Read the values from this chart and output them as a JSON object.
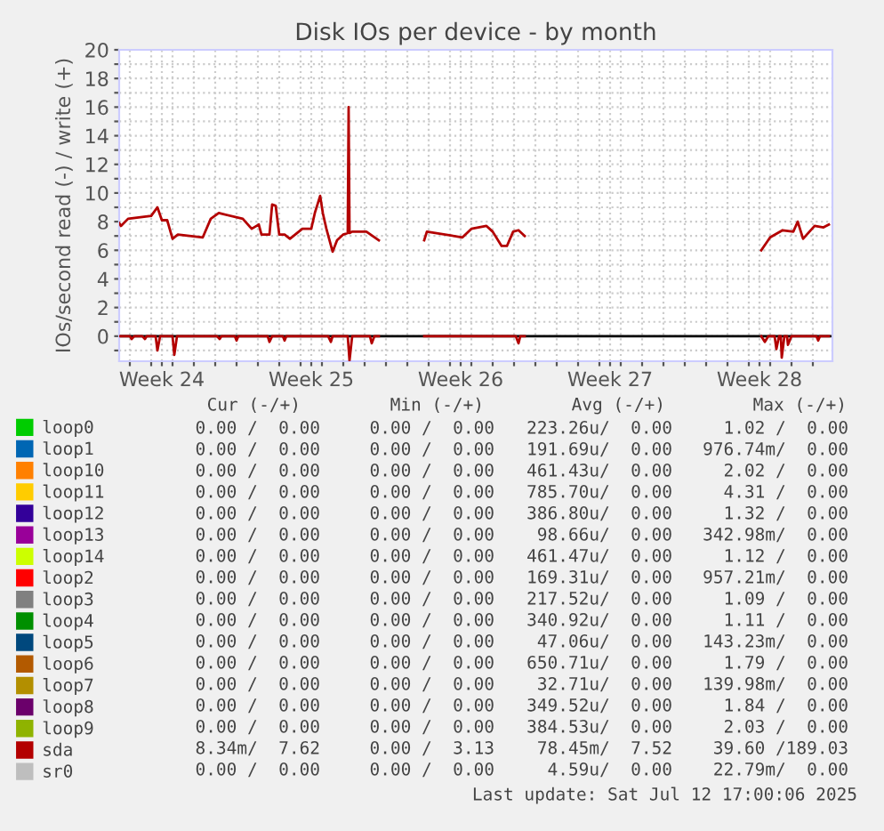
{
  "chart_data": {
    "type": "line",
    "title": "Disk IOs per device - by month",
    "ylabel": "IOs/second read (-) / write (+)",
    "xlim": [
      "2025-06-10T12:00",
      "2025-07-13T22:00"
    ],
    "ylim": [
      -1.75,
      20
    ],
    "xticks": [
      {
        "value": "2025-06-12T12:00",
        "label": "Week 24"
      },
      {
        "value": "2025-06-19T12:00",
        "label": "Week 25"
      },
      {
        "value": "2025-06-26T12:00",
        "label": "Week 26"
      },
      {
        "value": "2025-07-03T12:00",
        "label": "Week 27"
      },
      {
        "value": "2025-07-10T12:00",
        "label": "Week 28"
      },
      {
        "value": "2025-06-11",
        "label": null
      },
      {
        "value": "2025-06-12",
        "label": null
      },
      {
        "value": "2025-06-13",
        "label": null
      },
      {
        "value": "2025-06-14",
        "label": null
      },
      {
        "value": "2025-06-15",
        "label": null
      },
      {
        "value": "2025-06-16",
        "label": null
      },
      {
        "value": "2025-06-17",
        "label": null
      },
      {
        "value": "2025-06-18",
        "label": null
      },
      {
        "value": "2025-06-19",
        "label": null
      },
      {
        "value": "2025-06-20",
        "label": null
      },
      {
        "value": "2025-06-21",
        "label": null
      },
      {
        "value": "2025-06-22",
        "label": null
      },
      {
        "value": "2025-06-23",
        "label": null
      },
      {
        "value": "2025-06-24",
        "label": null
      },
      {
        "value": "2025-06-25",
        "label": null
      },
      {
        "value": "2025-06-26",
        "label": null
      },
      {
        "value": "2025-06-27",
        "label": null
      },
      {
        "value": "2025-06-28",
        "label": null
      },
      {
        "value": "2025-06-29",
        "label": null
      },
      {
        "value": "2025-06-30",
        "label": null
      },
      {
        "value": "2025-07-01",
        "label": null
      },
      {
        "value": "2025-07-02",
        "label": null
      },
      {
        "value": "2025-07-03",
        "label": null
      },
      {
        "value": "2025-07-04",
        "label": null
      },
      {
        "value": "2025-07-05",
        "label": null
      },
      {
        "value": "2025-07-06",
        "label": null
      },
      {
        "value": "2025-07-07",
        "label": null
      },
      {
        "value": "2025-07-08",
        "label": null
      },
      {
        "value": "2025-07-09",
        "label": null
      },
      {
        "value": "2025-07-10",
        "label": null
      },
      {
        "value": "2025-07-11",
        "label": null
      },
      {
        "value": "2025-07-12",
        "label": null
      },
      {
        "value": "2025-07-13",
        "label": null
      }
    ],
    "yticks": [
      0,
      2,
      4,
      6,
      8,
      10,
      12,
      14,
      16,
      18,
      20,
      {
        "value": -1,
        "label": null
      },
      {
        "value": 1,
        "label": null
      },
      {
        "value": 3,
        "label": null
      },
      {
        "value": 5,
        "label": null
      },
      {
        "value": 7,
        "label": null
      },
      {
        "value": 9,
        "label": null
      },
      {
        "value": 11,
        "label": null
      },
      {
        "value": 13,
        "label": null
      },
      {
        "value": 15,
        "label": null
      },
      {
        "value": 17,
        "label": null
      },
      {
        "value": 19,
        "label": null
      }
    ],
    "grid": true,
    "legend": "bottom left",
    "marker": "none",
    "line_style": "solid",
    "ref_lines": [
      {
        "axis": "y",
        "value": 0,
        "label": null,
        "color": "#000000"
      }
    ],
    "series": [
      {
        "name": "loop0",
        "color": "#00cc00"
      },
      {
        "name": "loop1",
        "color": "#0066b3"
      },
      {
        "name": "loop10",
        "color": "#ff8000"
      },
      {
        "name": "loop11",
        "color": "#ffcc00"
      },
      {
        "name": "loop12",
        "color": "#330099"
      },
      {
        "name": "loop13",
        "color": "#990099"
      },
      {
        "name": "loop14",
        "color": "#ccff00"
      },
      {
        "name": "loop2",
        "color": "#ff0000"
      },
      {
        "name": "loop3",
        "color": "#808080"
      },
      {
        "name": "loop4",
        "color": "#008f00"
      },
      {
        "name": "loop5",
        "color": "#00487d"
      },
      {
        "name": "loop6",
        "color": "#b35a00"
      },
      {
        "name": "loop7",
        "color": "#b38f00"
      },
      {
        "name": "loop8",
        "color": "#6b006b"
      },
      {
        "name": "loop9",
        "color": "#8fb300"
      },
      {
        "name": "sda",
        "color": "#b30000",
        "x": [
          "2025-06-10T12:00",
          "2025-06-10T14:00",
          "2025-06-10T22:00",
          "2025-06-12T00:00",
          "2025-06-12T07:00",
          "2025-06-12T12:00",
          "2025-06-12T18:00",
          "2025-06-13T00:00",
          "2025-06-13T06:00",
          "2025-06-14T10:00",
          "2025-06-14T19:00",
          "2025-06-15T04:00",
          "2025-06-16T07:00",
          "2025-06-16T17:00",
          "2025-06-17T01:00",
          "2025-06-17T04:00",
          "2025-06-17T13:00",
          "2025-06-17T16:00",
          "2025-06-17T20:00",
          "2025-06-18T00:00",
          "2025-06-18T06:00",
          "2025-06-18T12:00",
          "2025-06-19T02:00",
          "2025-06-19T12:00",
          "2025-06-19T16:00",
          "2025-06-19T22:00",
          "2025-06-20T01:00",
          "2025-06-20T05:00",
          "2025-06-20T12:00",
          "2025-06-20T17:00",
          "2025-06-21T00:00",
          "2025-06-21T05:00",
          "2025-06-21T06:00",
          "2025-06-21T07:00",
          "2025-06-21T10:00",
          "2025-06-22T02:00",
          "2025-06-22T16:00",
          "2025-06-23T00:00",
          "2025-06-24T19:00",
          "2025-06-24T22:00",
          "2025-06-26T14:00",
          "2025-06-27T00:00",
          "2025-06-27T17:00",
          "2025-06-28T00:00",
          "2025-06-28T10:00",
          "2025-06-28T16:00",
          "2025-06-28T23:00",
          "2025-06-29T05:00",
          "2025-06-29T12:00",
          "2025-07-06T00:00",
          "2025-07-10T14:00",
          "2025-07-11T00:00",
          "2025-07-11T14:00",
          "2025-07-12T02:00",
          "2025-07-12T07:00",
          "2025-07-12T13:00",
          "2025-07-13T02:00",
          "2025-07-13T12:00",
          "2025-07-13T18:00"
        ],
        "values": [
          7.9,
          7.7,
          8.2,
          8.4,
          9.0,
          8.1,
          8.1,
          6.8,
          7.1,
          6.9,
          8.2,
          8.6,
          8.2,
          7.5,
          7.8,
          7.1,
          7.1,
          9.2,
          9.1,
          7.1,
          7.1,
          6.8,
          7.5,
          7.5,
          8.6,
          9.8,
          8.6,
          7.5,
          5.9,
          6.7,
          7.1,
          7.2,
          16,
          7.2,
          7.3,
          7.3,
          6.7,
          null,
          6.7,
          7.3,
          6.9,
          7.5,
          7.7,
          7.3,
          6.3,
          6.3,
          7.3,
          7.4,
          7.0,
          null,
          6.0,
          6.9,
          7.4,
          7.3,
          8.0,
          6.8,
          7.7,
          7.6,
          7.8
        ]
      },
      {
        "color": "#b30000",
        "x": [
          "2025-06-10T12:00",
          "2025-06-11T00:00",
          "2025-06-11T02:00",
          "2025-06-11T05:00",
          "2025-06-11T14:00",
          "2025-06-11T17:00",
          "2025-06-11T19:00",
          "2025-06-12T05:00",
          "2025-06-12T07:00",
          "2025-06-12T10:00",
          "2025-06-13T00:00",
          "2025-06-13T02:00",
          "2025-06-13T05:00",
          "2025-06-15T02:00",
          "2025-06-15T05:00",
          "2025-06-15T07:00",
          "2025-06-15T22:00",
          "2025-06-16T00:00",
          "2025-06-16T02:00",
          "2025-06-17T11:00",
          "2025-06-17T13:00",
          "2025-06-17T16:00",
          "2025-06-18T04:00",
          "2025-06-18T06:00",
          "2025-06-18T08:00",
          "2025-06-20T07:00",
          "2025-06-20T10:00",
          "2025-06-20T12:00",
          "2025-06-21T05:00",
          "2025-06-21T07:00",
          "2025-06-21T10:00",
          "2025-06-22T06:00",
          "2025-06-22T08:00",
          "2025-06-22T11:00",
          "2025-06-22T16:00",
          "2025-06-23T00:00",
          "2025-06-24T19:00",
          "2025-06-29T02:00",
          "2025-06-29T05:00",
          "2025-06-29T07:00",
          "2025-06-29T12:00",
          "2025-07-06T00:00",
          "2025-07-10T14:00",
          "2025-07-10T18:00",
          "2025-07-10T22:00",
          "2025-07-11T05:00",
          "2025-07-11T07:00",
          "2025-07-11T10:00",
          "2025-07-11T12:00",
          "2025-07-11T13:00",
          "2025-07-11T16:00",
          "2025-07-11T19:00",
          "2025-07-11T20:00",
          "2025-07-12T00:00",
          "2025-07-13T04:00",
          "2025-07-13T06:00",
          "2025-07-13T08:00",
          "2025-07-13T18:00"
        ],
        "values": [
          0,
          0,
          -0.2,
          0,
          0,
          -0.2,
          0,
          0,
          -1.0,
          0,
          0,
          -1.3,
          0,
          0,
          -0.2,
          0,
          0,
          -0.3,
          0,
          0,
          -0.4,
          0,
          0,
          -0.3,
          0,
          0,
          -0.4,
          0,
          0,
          -1.7,
          0,
          0,
          -0.5,
          0,
          0,
          null,
          0,
          0,
          -0.5,
          0,
          0,
          null,
          0,
          -0.4,
          0,
          0,
          -0.9,
          0,
          0,
          -1.5,
          0,
          0,
          -0.6,
          0,
          0,
          -0.3,
          0,
          0
        ]
      },
      {
        "name": "sr0",
        "color": "#bebebe"
      }
    ],
    "annotations": [
      "Cur (-/+)",
      "Min (-/+)",
      "Avg (-/+)",
      "Max (-/+)",
      "0.00 /  0.00",
      "0.00 /  0.00",
      "223.26u/  0.00",
      "1.02 /  0.00",
      "0.00 /  0.00",
      "0.00 /  0.00",
      "191.69u/  0.00",
      "976.74m/  0.00",
      "0.00 /  0.00",
      "0.00 /  0.00",
      "461.43u/  0.00",
      "2.02 /  0.00",
      "0.00 /  0.00",
      "0.00 /  0.00",
      "785.70u/  0.00",
      "4.31 /  0.00",
      "0.00 /  0.00",
      "0.00 /  0.00",
      "386.80u/  0.00",
      "1.32 /  0.00",
      "0.00 /  0.00",
      "0.00 /  0.00",
      "98.66u/  0.00",
      "342.98m/  0.00",
      "0.00 /  0.00",
      "0.00 /  0.00",
      "461.47u/  0.00",
      "1.12 /  0.00",
      "0.00 /  0.00",
      "0.00 /  0.00",
      "169.31u/  0.00",
      "957.21m/  0.00",
      "0.00 /  0.00",
      "0.00 /  0.00",
      "217.52u/  0.00",
      "1.09 /  0.00",
      "0.00 /  0.00",
      "0.00 /  0.00",
      "340.92u/  0.00",
      "1.11 /  0.00",
      "0.00 /  0.00",
      "0.00 /  0.00",
      "47.06u/  0.00",
      "143.23m/  0.00",
      "0.00 /  0.00",
      "0.00 /  0.00",
      "650.71u/  0.00",
      "1.79 /  0.00",
      "0.00 /  0.00",
      "0.00 /  0.00",
      "32.71u/  0.00",
      "139.98m/  0.00",
      "0.00 /  0.00",
      "0.00 /  0.00",
      "349.52u/  0.00",
      "1.84 /  0.00",
      "0.00 /  0.00",
      "0.00 /  0.00",
      "384.53u/  0.00",
      "2.03 /  0.00",
      "8.34m/  7.62",
      "0.00 /  3.13",
      "78.45m/  7.52",
      "39.60 /189.03",
      "0.00 /  0.00",
      "0.00 /  0.00",
      "4.59u/  0.00",
      "22.79m/  0.00",
      "Last update: Sat Jul 12 17:00:06 2025"
    ]
  }
}
